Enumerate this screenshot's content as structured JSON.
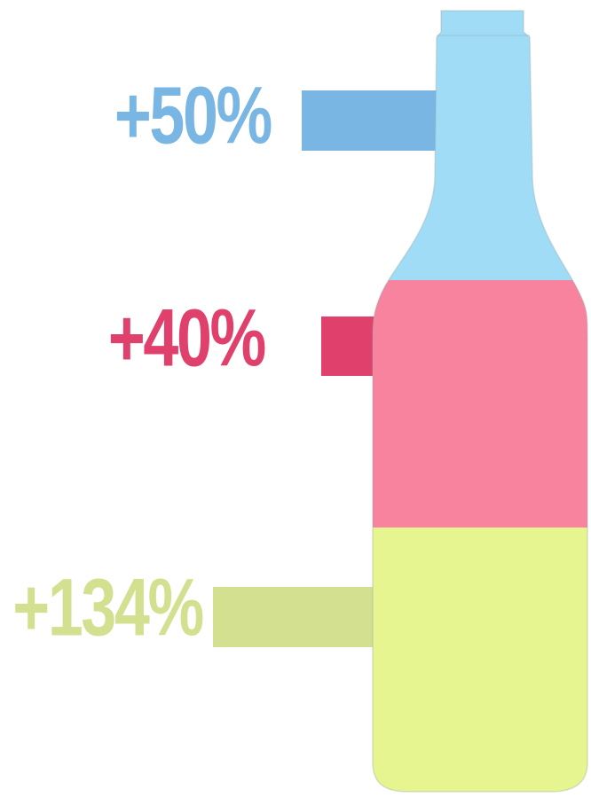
{
  "items": [
    {
      "label": "+50%",
      "color": "#7ab6e3",
      "bottle_color": "#a0dcf5"
    },
    {
      "label": "+40%",
      "color": "#e0406c",
      "bottle_color": "#f7839f"
    },
    {
      "label": "+134%",
      "color": "#d3e08f",
      "bottle_color": "#e6f590"
    }
  ]
}
